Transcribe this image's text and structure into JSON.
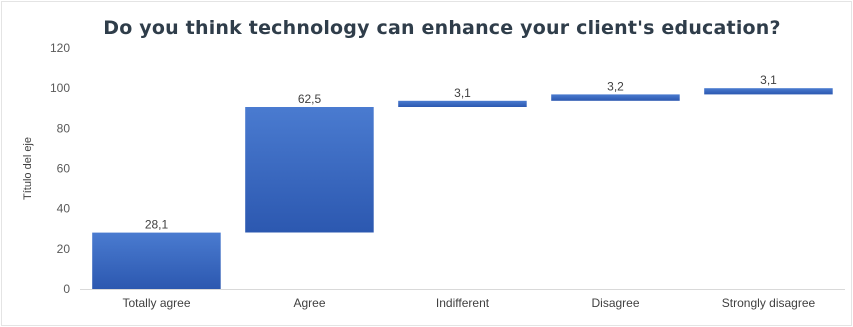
{
  "chart_data": {
    "type": "bar",
    "subtype": "waterfall",
    "title": "Do you think technology can enhance your client's education?",
    "ylabel": "Título del eje",
    "xlabel": "",
    "categories": [
      "Totally agree",
      "Agree",
      "Indifferent",
      "Disagree",
      "Strongly disagree"
    ],
    "values": [
      28.1,
      62.5,
      3.1,
      3.2,
      3.1
    ],
    "value_labels": [
      "28,1",
      "62,5",
      "3,1",
      "3,2",
      "3,1"
    ],
    "ylim": [
      0,
      120
    ],
    "yticks": [
      0,
      20,
      40,
      60,
      80,
      100,
      120
    ],
    "grid": false,
    "legend": "none",
    "bar_color": "#4472c4",
    "bar_color_dark": "#2e5bb4"
  }
}
